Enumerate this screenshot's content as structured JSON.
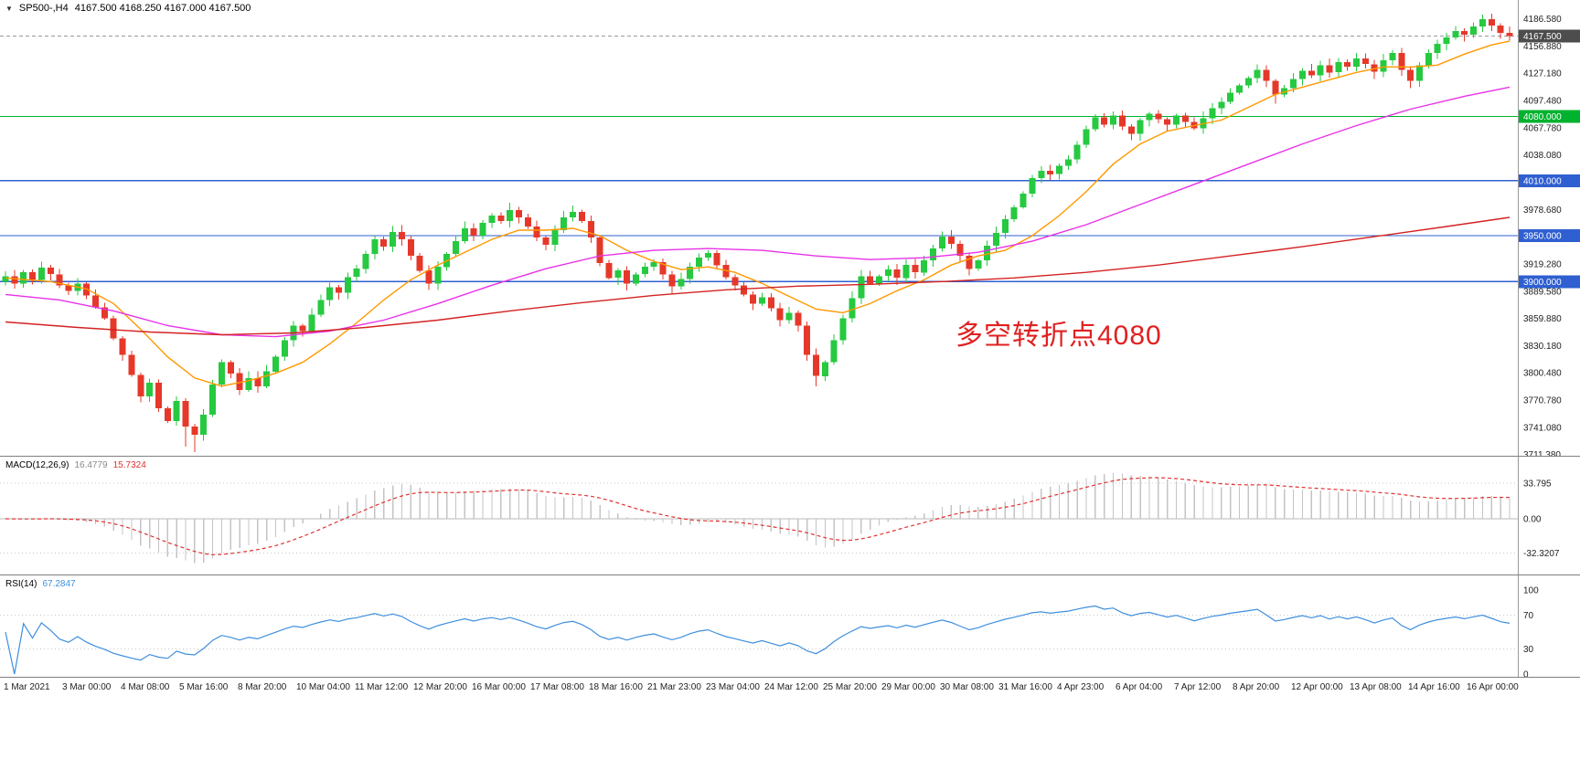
{
  "header": {
    "symbol_timeframe": "SP500-,H4",
    "ohlc": "4167.500 4168.250 4167.000 4167.500",
    "marker_icon": "triangle-down"
  },
  "chart_data": [
    {
      "type": "candlestick",
      "title": "SP500-,H4",
      "timeframe": "H4",
      "up_color": "#26c940",
      "down_color": "#e5382a",
      "x_labels": [
        "1 Mar 2021",
        "3 Mar 00:00",
        "4 Mar 08:00",
        "5 Mar 16:00",
        "8 Mar 20:00",
        "10 Mar 04:00",
        "11 Mar 12:00",
        "12 Mar 20:00",
        "16 Mar 00:00",
        "17 Mar 08:00",
        "18 Mar 16:00",
        "21 Mar 23:00",
        "23 Mar 04:00",
        "24 Mar 12:00",
        "25 Mar 20:00",
        "29 Mar 00:00",
        "30 Mar 08:00",
        "31 Mar 16:00",
        "4 Apr 23:00",
        "6 Apr 04:00",
        "7 Apr 12:00",
        "8 Apr 20:00",
        "12 Apr 00:00",
        "13 Apr 08:00",
        "14 Apr 16:00",
        "16 Apr 00:00"
      ],
      "first_open": 3900,
      "closes": [
        3906,
        3898,
        3910,
        3902,
        3915,
        3908,
        3896,
        3890,
        3898,
        3885,
        3872,
        3860,
        3838,
        3820,
        3798,
        3775,
        3790,
        3762,
        3748,
        3770,
        3742,
        3733,
        3755,
        3788,
        3812,
        3800,
        3782,
        3795,
        3786,
        3802,
        3818,
        3836,
        3852,
        3846,
        3864,
        3880,
        3894,
        3888,
        3905,
        3914,
        3930,
        3946,
        3938,
        3954,
        3946,
        3928,
        3912,
        3898,
        3916,
        3930,
        3944,
        3958,
        3950,
        3964,
        3972,
        3966,
        3978,
        3970,
        3960,
        3948,
        3940,
        3956,
        3970,
        3976,
        3966,
        3948,
        3920,
        3904,
        3912,
        3898,
        3908,
        3916,
        3921,
        3908,
        3895,
        3903,
        3916,
        3926,
        3931,
        3918,
        3905,
        3896,
        3886,
        3876,
        3883,
        3871,
        3858,
        3866,
        3852,
        3820,
        3797,
        3812,
        3836,
        3860,
        3882,
        3906,
        3898,
        3906,
        3913,
        3904,
        3918,
        3910,
        3923,
        3936,
        3949,
        3941,
        3928,
        3914,
        3923,
        3939,
        3953,
        3968,
        3981,
        3996,
        4013,
        4021,
        4017,
        4026,
        4033,
        4049,
        4066,
        4079,
        4071,
        4081,
        4069,
        4061,
        4076,
        4083,
        4077,
        4071,
        4081,
        4074,
        4067,
        4078,
        4089,
        4096,
        4106,
        4114,
        4122,
        4131,
        4119,
        4104,
        4111,
        4121,
        4130,
        4125,
        4136,
        4128,
        4139,
        4134,
        4143,
        4137,
        4129,
        4141,
        4149,
        4131,
        4119,
        4136,
        4149,
        4159,
        4166,
        4173,
        4169,
        4178,
        4186,
        4179,
        4171,
        4167.5
      ],
      "high_overrides": {
        "56": 3986,
        "63": 3983,
        "164": 4191
      },
      "low_overrides": {
        "20": 3720,
        "21": 3714,
        "28": 3779,
        "47": 3891,
        "74": 3887,
        "83": 3869,
        "86": 3851,
        "90": 3786,
        "107": 3907,
        "125": 4054,
        "141": 4094,
        "152": 4121,
        "156": 4111
      },
      "y_axis_labels": [
        {
          "p": 4186.58,
          "t": "4186.580"
        },
        {
          "p": 4156.88,
          "t": "4156.880"
        },
        {
          "p": 4127.18,
          "t": "4127.180"
        },
        {
          "p": 4097.48,
          "t": "4097.480"
        },
        {
          "p": 4067.78,
          "t": "4067.780"
        },
        {
          "p": 4038.08,
          "t": "4038.080"
        },
        {
          "p": 3978.68,
          "t": "3978.680"
        },
        {
          "p": 3919.28,
          "t": "3919.280"
        },
        {
          "p": 3889.58,
          "t": "3889.580"
        },
        {
          "p": 3859.88,
          "t": "3859.880"
        },
        {
          "p": 3830.18,
          "t": "3830.180"
        },
        {
          "p": 3800.48,
          "t": "3800.480"
        },
        {
          "p": 3770.78,
          "t": "3770.780"
        },
        {
          "p": 3741.08,
          "t": "3741.080"
        },
        {
          "p": 3711.38,
          "t": "3711.380"
        }
      ],
      "hlines": [
        {
          "price": 4167.5,
          "label": "4167.500",
          "color": "#4d4d4d",
          "line_color": "#9a9a9a",
          "style": "dashed",
          "kind": "current-price"
        },
        {
          "price": 4080,
          "label": "4080.000",
          "color": "#00b22d",
          "line_color": "#00b22d",
          "style": "solid",
          "kind": "level"
        },
        {
          "price": 4010,
          "label": "4010.000",
          "color": "#2f5fd0",
          "line_color": "#2f5fd0",
          "style": "solid",
          "kind": "level"
        },
        {
          "price": 3950,
          "label": "3950.000",
          "color": "#2f5fd0",
          "line_color": "#2f5fd0",
          "style": "solid",
          "kind": "level"
        },
        {
          "price": 3900,
          "label": "3900.000",
          "color": "#2f5fd0",
          "line_color": "#2f5fd0",
          "style": "solid",
          "kind": "level"
        }
      ],
      "ma_lines": [
        {
          "name": "ma-fast",
          "color": "#ff9800",
          "points": [
            [
              0,
              3904
            ],
            [
              5,
              3900
            ],
            [
              9,
              3892
            ],
            [
              12,
              3876
            ],
            [
              15,
              3848
            ],
            [
              18,
              3818
            ],
            [
              21,
              3795
            ],
            [
              24,
              3786
            ],
            [
              27,
              3792
            ],
            [
              30,
              3800
            ],
            [
              33,
              3812
            ],
            [
              36,
              3832
            ],
            [
              39,
              3855
            ],
            [
              42,
              3880
            ],
            [
              45,
              3902
            ],
            [
              48,
              3918
            ],
            [
              51,
              3932
            ],
            [
              54,
              3946
            ],
            [
              57,
              3956
            ],
            [
              60,
              3956
            ],
            [
              63,
              3958
            ],
            [
              66,
              3950
            ],
            [
              69,
              3934
            ],
            [
              72,
              3922
            ],
            [
              75,
              3913
            ],
            [
              78,
              3916
            ],
            [
              81,
              3910
            ],
            [
              84,
              3898
            ],
            [
              87,
              3884
            ],
            [
              90,
              3870
            ],
            [
              93,
              3866
            ],
            [
              96,
              3876
            ],
            [
              99,
              3890
            ],
            [
              102,
              3902
            ],
            [
              105,
              3918
            ],
            [
              108,
              3928
            ],
            [
              111,
              3934
            ],
            [
              114,
              3950
            ],
            [
              117,
              3972
            ],
            [
              120,
              3998
            ],
            [
              123,
              4028
            ],
            [
              126,
              4050
            ],
            [
              129,
              4064
            ],
            [
              132,
              4070
            ],
            [
              135,
              4076
            ],
            [
              138,
              4090
            ],
            [
              141,
              4104
            ],
            [
              144,
              4112
            ],
            [
              147,
              4120
            ],
            [
              150,
              4128
            ],
            [
              153,
              4134
            ],
            [
              156,
              4134
            ],
            [
              159,
              4136
            ],
            [
              162,
              4148
            ],
            [
              165,
              4158
            ],
            [
              167,
              4162
            ]
          ]
        },
        {
          "name": "ma-mid",
          "color": "#e832e8",
          "points": [
            [
              0,
              3886
            ],
            [
              6,
              3880
            ],
            [
              12,
              3868
            ],
            [
              18,
              3852
            ],
            [
              24,
              3842
            ],
            [
              30,
              3840
            ],
            [
              36,
              3846
            ],
            [
              42,
              3858
            ],
            [
              48,
              3876
            ],
            [
              54,
              3896
            ],
            [
              60,
              3914
            ],
            [
              66,
              3928
            ],
            [
              72,
              3934
            ],
            [
              78,
              3936
            ],
            [
              84,
              3934
            ],
            [
              90,
              3928
            ],
            [
              96,
              3924
            ],
            [
              102,
              3926
            ],
            [
              108,
              3932
            ],
            [
              114,
              3944
            ],
            [
              120,
              3962
            ],
            [
              126,
              3984
            ],
            [
              132,
              4006
            ],
            [
              138,
              4028
            ],
            [
              144,
              4050
            ],
            [
              150,
              4070
            ],
            [
              156,
              4088
            ],
            [
              162,
              4102
            ],
            [
              167,
              4112
            ]
          ]
        },
        {
          "name": "ma-slow",
          "color": "#d42222",
          "points": [
            [
              0,
              3856
            ],
            [
              8,
              3850
            ],
            [
              16,
              3845
            ],
            [
              24,
              3842
            ],
            [
              32,
              3844
            ],
            [
              40,
              3850
            ],
            [
              48,
              3858
            ],
            [
              56,
              3868
            ],
            [
              64,
              3877
            ],
            [
              72,
              3885
            ],
            [
              80,
              3891
            ],
            [
              88,
              3895
            ],
            [
              96,
              3897
            ],
            [
              104,
              3900
            ],
            [
              112,
              3904
            ],
            [
              120,
              3910
            ],
            [
              128,
              3918
            ],
            [
              136,
              3928
            ],
            [
              144,
              3938
            ],
            [
              152,
              3949
            ],
            [
              160,
              3960
            ],
            [
              167,
              3970
            ]
          ]
        }
      ],
      "annotation": {
        "text": "多空转折点4080",
        "color": "#e02020"
      }
    },
    {
      "type": "bar",
      "name": "macd",
      "label": "MACD(12,26,9)",
      "value_main": "16.4779",
      "value_signal": "15.7324",
      "params": {
        "fast": 12,
        "slow": 26,
        "signal": 9
      },
      "axis": [
        {
          "v": 33.795,
          "t": "33.795"
        },
        {
          "v": 0,
          "t": "0.00"
        },
        {
          "v": -32.3207,
          "t": "-32.3207"
        }
      ],
      "histogram_color": "#c4c4c4",
      "signal_color": "#e03131",
      "signal_style": "dashed"
    },
    {
      "type": "line",
      "name": "rsi",
      "label": "RSI(14)",
      "value": "67.2847",
      "period": 14,
      "axis": [
        {
          "v": 100,
          "t": "100"
        },
        {
          "v": 70,
          "t": "70"
        },
        {
          "v": 30,
          "t": "30"
        },
        {
          "v": 0,
          "t": "0"
        }
      ],
      "levels": [
        70,
        30
      ],
      "line_color": "#3f8fdd"
    }
  ]
}
